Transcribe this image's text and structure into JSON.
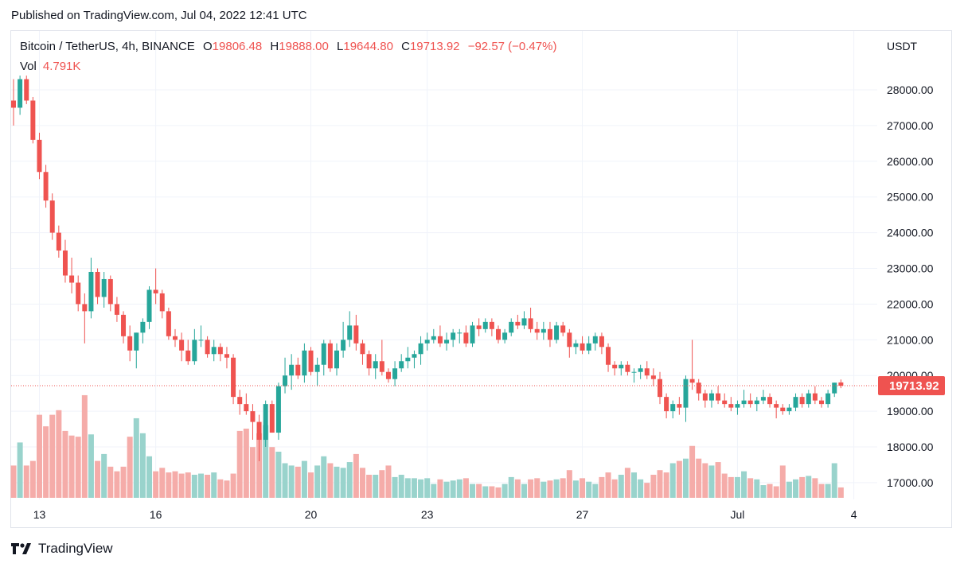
{
  "published": "Published on TradingView.com, Jul 04, 2022 12:41 UTC",
  "legend": {
    "symbol": "Bitcoin / TetherUS, 4h, BINANCE",
    "open_key": "O",
    "open": "19806.48",
    "high_key": "H",
    "high": "19888.00",
    "low_key": "L",
    "low": "19644.80",
    "close_key": "C",
    "close": "19713.92",
    "change": "−92.57 (−0.47%)",
    "vol_label": "Vol",
    "vol_value": "4.791K"
  },
  "brand": {
    "name": "TradingView",
    "logo_icon": "tradingview-logo-icon"
  },
  "chart_data": {
    "type": "candlestick",
    "currency": "USDT",
    "y_ticks": [
      17000,
      18000,
      19000,
      20000,
      21000,
      22000,
      23000,
      24000,
      25000,
      26000,
      27000,
      28000
    ],
    "y_tick_labels": [
      "17000.00",
      "18000.00",
      "19000.00",
      "20000.00",
      "21000.00",
      "22000.00",
      "23000.00",
      "24000.00",
      "25000.00",
      "26000.00",
      "27000.00",
      "28000.00"
    ],
    "ylim": [
      16500,
      29000
    ],
    "x_tick_labels": [
      {
        "label": "13",
        "index": 4
      },
      {
        "label": "16",
        "index": 22
      },
      {
        "label": "20",
        "index": 46
      },
      {
        "label": "23",
        "index": 64
      },
      {
        "label": "27",
        "index": 88
      },
      {
        "label": "Jul",
        "index": 112
      },
      {
        "label": "4",
        "index": 130
      }
    ],
    "last_price": 19713.92,
    "last_price_label": "19713.92",
    "colors": {
      "up": "#26a69a",
      "down": "#ef5350",
      "up_vol": "#99d3cc",
      "down_vol": "#f5aca9"
    },
    "grid": true,
    "candles": [
      [
        27700,
        28300,
        27000,
        27500,
        0.28
      ],
      [
        27500,
        28400,
        27300,
        28300,
        0.48
      ],
      [
        28300,
        28400,
        27600,
        27700,
        0.28
      ],
      [
        27700,
        27800,
        26500,
        26600,
        0.32
      ],
      [
        26600,
        26800,
        25500,
        25700,
        0.72
      ],
      [
        25700,
        25900,
        24700,
        24900,
        0.62
      ],
      [
        24900,
        25100,
        23800,
        24000,
        0.72
      ],
      [
        24000,
        24200,
        23300,
        23500,
        0.76
      ],
      [
        23500,
        23800,
        22600,
        22800,
        0.58
      ],
      [
        22800,
        23300,
        22300,
        22600,
        0.54
      ],
      [
        22600,
        22800,
        21800,
        22000,
        0.53
      ],
      [
        22000,
        22300,
        20900,
        21800,
        0.89
      ],
      [
        21800,
        23300,
        21600,
        22900,
        0.55
      ],
      [
        22900,
        23000,
        22000,
        22200,
        0.32
      ],
      [
        22200,
        22900,
        21900,
        22700,
        0.38
      ],
      [
        22700,
        22800,
        21800,
        22000,
        0.27
      ],
      [
        22000,
        22200,
        21500,
        21700,
        0.23
      ],
      [
        21700,
        21800,
        20900,
        21100,
        0.27
      ],
      [
        21100,
        21400,
        20400,
        20700,
        0.53
      ],
      [
        20700,
        21200,
        20200,
        21200,
        0.69
      ],
      [
        21200,
        21600,
        20900,
        21500,
        0.56
      ],
      [
        21500,
        22500,
        21300,
        22400,
        0.36
      ],
      [
        22400,
        23000,
        22000,
        22300,
        0.23
      ],
      [
        22300,
        22400,
        21600,
        21800,
        0.26
      ],
      [
        21800,
        21900,
        21000,
        21100,
        0.22
      ],
      [
        21100,
        21300,
        20800,
        21000,
        0.23
      ],
      [
        21000,
        21200,
        20400,
        20700,
        0.21
      ],
      [
        20700,
        21000,
        20300,
        20400,
        0.22
      ],
      [
        20400,
        21300,
        20300,
        21000,
        0.2
      ],
      [
        21000,
        21400,
        20800,
        21000,
        0.21
      ],
      [
        21000,
        21100,
        20500,
        20600,
        0.2
      ],
      [
        20600,
        21000,
        20400,
        20800,
        0.22
      ],
      [
        20800,
        20900,
        20400,
        20600,
        0.16
      ],
      [
        20600,
        20800,
        20200,
        20500,
        0.15
      ],
      [
        20500,
        20600,
        19200,
        19400,
        0.21
      ],
      [
        19400,
        19600,
        18900,
        19200,
        0.58
      ],
      [
        19200,
        19500,
        18900,
        19000,
        0.6
      ],
      [
        19000,
        19200,
        18200,
        18700,
        0.44
      ],
      [
        18700,
        18900,
        17600,
        18200,
        0.56
      ],
      [
        18200,
        19300,
        18000,
        19200,
        0.63
      ],
      [
        19200,
        19300,
        18400,
        18400,
        0.44
      ],
      [
        18400,
        19800,
        18200,
        19700,
        0.4
      ],
      [
        19700,
        20500,
        19500,
        20000,
        0.3
      ],
      [
        20000,
        20600,
        19600,
        20300,
        0.28
      ],
      [
        20300,
        20500,
        19900,
        20000,
        0.27
      ],
      [
        20000,
        20900,
        19800,
        20700,
        0.32
      ],
      [
        20700,
        20800,
        20000,
        20100,
        0.22
      ],
      [
        20100,
        20500,
        19700,
        20300,
        0.28
      ],
      [
        20300,
        21000,
        20000,
        20900,
        0.36
      ],
      [
        20900,
        21000,
        20100,
        20200,
        0.3
      ],
      [
        20200,
        20900,
        20000,
        20700,
        0.27
      ],
      [
        20700,
        21500,
        20500,
        21000,
        0.26
      ],
      [
        21000,
        21800,
        20800,
        21400,
        0.31
      ],
      [
        21400,
        21700,
        20700,
        20900,
        0.38
      ],
      [
        20900,
        21000,
        20300,
        20600,
        0.26
      ],
      [
        20600,
        20700,
        20000,
        20200,
        0.2
      ],
      [
        20200,
        20600,
        19900,
        20400,
        0.2
      ],
      [
        20400,
        21000,
        20000,
        20100,
        0.24
      ],
      [
        20100,
        20200,
        19800,
        19900,
        0.28
      ],
      [
        19900,
        20400,
        19700,
        20200,
        0.18
      ],
      [
        20200,
        20600,
        20100,
        20400,
        0.2
      ],
      [
        20400,
        20800,
        20200,
        20500,
        0.17
      ],
      [
        20500,
        20700,
        20200,
        20600,
        0.17
      ],
      [
        20600,
        21100,
        20300,
        20900,
        0.16
      ],
      [
        20900,
        21200,
        20700,
        21000,
        0.17
      ],
      [
        21000,
        21300,
        20900,
        21100,
        0.12
      ],
      [
        21100,
        21400,
        20800,
        20900,
        0.16
      ],
      [
        20900,
        21200,
        20700,
        21000,
        0.14
      ],
      [
        21000,
        21300,
        20800,
        21200,
        0.15
      ],
      [
        21200,
        21300,
        20900,
        21200,
        0.16
      ],
      [
        21200,
        21400,
        20800,
        20900,
        0.17
      ],
      [
        20900,
        21500,
        20800,
        21400,
        0.12
      ],
      [
        21400,
        21600,
        21100,
        21300,
        0.12
      ],
      [
        21300,
        21600,
        21200,
        21500,
        0.1
      ],
      [
        21500,
        21600,
        21100,
        21300,
        0.1
      ],
      [
        21300,
        21400,
        20900,
        21000,
        0.09
      ],
      [
        21000,
        21300,
        20900,
        21200,
        0.12
      ],
      [
        21200,
        21600,
        21100,
        21500,
        0.18
      ],
      [
        21500,
        21700,
        21300,
        21400,
        0.16
      ],
      [
        21400,
        21800,
        21300,
        21600,
        0.12
      ],
      [
        21600,
        21900,
        21200,
        21300,
        0.16
      ],
      [
        21300,
        21500,
        21000,
        21200,
        0.17
      ],
      [
        21200,
        21500,
        21000,
        21300,
        0.14
      ],
      [
        21300,
        21500,
        20800,
        21000,
        0.15
      ],
      [
        21000,
        21500,
        20900,
        21400,
        0.16
      ],
      [
        21400,
        21500,
        21100,
        21200,
        0.17
      ],
      [
        21200,
        21300,
        20500,
        20800,
        0.24
      ],
      [
        20800,
        21000,
        20600,
        20900,
        0.15
      ],
      [
        20900,
        21100,
        20600,
        20700,
        0.17
      ],
      [
        20700,
        21100,
        20600,
        20900,
        0.14
      ],
      [
        20900,
        21200,
        20700,
        21100,
        0.12
      ],
      [
        21100,
        21200,
        20600,
        20800,
        0.18
      ],
      [
        20800,
        20900,
        20100,
        20300,
        0.22
      ],
      [
        20300,
        20400,
        20000,
        20200,
        0.16
      ],
      [
        20200,
        20400,
        20000,
        20300,
        0.2
      ],
      [
        20300,
        20400,
        20000,
        20100,
        0.26
      ],
      [
        20100,
        20200,
        19800,
        20100,
        0.22
      ],
      [
        20100,
        20300,
        19900,
        20200,
        0.16
      ],
      [
        20200,
        20400,
        19900,
        20000,
        0.13
      ],
      [
        20000,
        20200,
        19700,
        19900,
        0.2
      ],
      [
        19900,
        20100,
        19200,
        19400,
        0.24
      ],
      [
        19400,
        19500,
        18800,
        19000,
        0.22
      ],
      [
        19000,
        19300,
        18800,
        19200,
        0.3
      ],
      [
        19200,
        19400,
        18900,
        19100,
        0.32
      ],
      [
        19100,
        20000,
        18700,
        19900,
        0.34
      ],
      [
        19900,
        21000,
        19600,
        19800,
        0.45
      ],
      [
        19800,
        19900,
        19300,
        19500,
        0.34
      ],
      [
        19500,
        19600,
        19100,
        19300,
        0.3
      ],
      [
        19300,
        19600,
        19100,
        19500,
        0.28
      ],
      [
        19500,
        19700,
        19200,
        19300,
        0.31
      ],
      [
        19300,
        19500,
        19100,
        19200,
        0.21
      ],
      [
        19200,
        19400,
        19000,
        19100,
        0.18
      ],
      [
        19100,
        19300,
        18900,
        19200,
        0.18
      ],
      [
        19200,
        19600,
        19100,
        19300,
        0.23
      ],
      [
        19300,
        19500,
        19100,
        19200,
        0.17
      ],
      [
        19200,
        19400,
        19000,
        19300,
        0.16
      ],
      [
        19300,
        19600,
        19200,
        19400,
        0.11
      ],
      [
        19400,
        19500,
        19100,
        19200,
        0.12
      ],
      [
        19200,
        19300,
        18800,
        19100,
        0.1
      ],
      [
        19100,
        19200,
        18900,
        19000,
        0.28
      ],
      [
        19000,
        19200,
        18900,
        19100,
        0.14
      ],
      [
        19100,
        19500,
        19000,
        19400,
        0.16
      ],
      [
        19400,
        19500,
        19100,
        19200,
        0.18
      ],
      [
        19200,
        19600,
        19100,
        19500,
        0.19
      ],
      [
        19500,
        19700,
        19200,
        19300,
        0.17
      ],
      [
        19300,
        19400,
        19100,
        19200,
        0.12
      ],
      [
        19200,
        19600,
        19100,
        19500,
        0.12
      ],
      [
        19500,
        19800,
        19400,
        19800,
        0.3
      ],
      [
        19806.48,
        19888,
        19644.8,
        19713.92,
        0.09
      ]
    ]
  }
}
